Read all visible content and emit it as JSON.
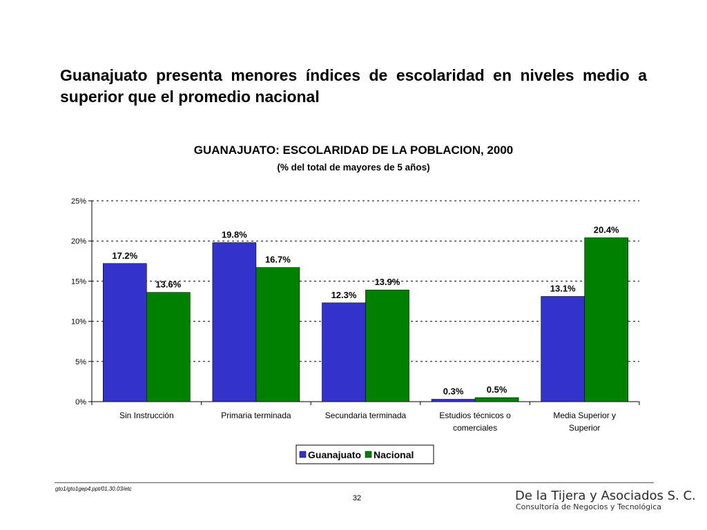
{
  "headline": "Guanajuato presenta menores índices de escolaridad en niveles medio a superior que el promedio nacional",
  "chart_data": {
    "type": "bar",
    "title": "GUANAJUATO: ESCOLARIDAD DE LA POBLACION, 2000",
    "subtitle": "(% del total de mayores de 5 años)",
    "categories": [
      [
        "Sin Instrucción"
      ],
      [
        "Primaria terminada"
      ],
      [
        "Secundaria terminada"
      ],
      [
        "Estudios técnicos o",
        "comerciales"
      ],
      [
        "Media Superior y",
        "Superior"
      ]
    ],
    "series": [
      {
        "name": "Guanajuato",
        "color": "#3333cc",
        "values": [
          17.2,
          19.8,
          12.3,
          0.3,
          13.1
        ],
        "labels": [
          "17.2%",
          "19.8%",
          "12.3%",
          "0.3%",
          "13.1%"
        ]
      },
      {
        "name": "Nacional",
        "color": "#008000",
        "values": [
          13.6,
          16.7,
          13.9,
          0.5,
          20.4
        ],
        "labels": [
          "13.6%",
          "16.7%",
          "13.9%",
          "0.5%",
          "20.4%"
        ]
      }
    ],
    "ylim": [
      0,
      25
    ],
    "yticks": [
      "0%",
      "5%",
      "10%",
      "15%",
      "20%",
      "25%"
    ],
    "ytick_values": [
      0,
      5,
      10,
      15,
      20,
      25
    ],
    "grid": true,
    "legend": "bottom-center"
  },
  "footer": {
    "reference": "gto1/gto1gep4.ppt/01.30.03/etc",
    "page_number": "32",
    "company": "De la Tijera y Asociados S. C.",
    "company_tagline": "Consultoría de Negocios y Tecnológica"
  }
}
